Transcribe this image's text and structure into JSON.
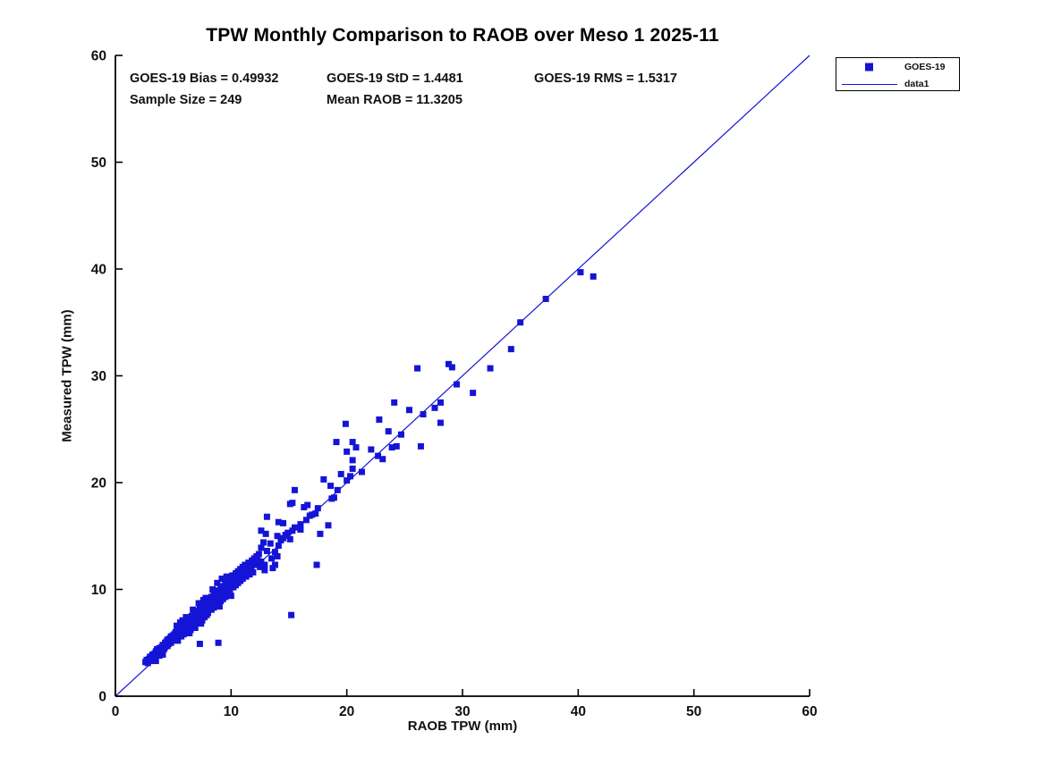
{
  "title": "TPW Monthly Comparison to RAOB over Meso 1 2025-11",
  "stats": {
    "bias": "GOES-19 Bias = 0.49932",
    "std": "GOES-19 StD = 1.4481",
    "rms": "GOES-19 RMS = 1.5317",
    "sample_size": "Sample Size = 249",
    "mean_raob": "Mean RAOB = 11.3205"
  },
  "legend": {
    "marker_label": "GOES-19",
    "line_label": "data1"
  },
  "colors": {
    "accent_blue": "#1414d6",
    "axis_black": "#000000",
    "background": "#ffffff"
  },
  "chart_data": {
    "type": "scatter",
    "title": "TPW Monthly Comparison to RAOB over Meso 1 2025-11",
    "xlabel": "RAOB TPW (mm)",
    "ylabel": "Measured TPW (mm)",
    "xlim": [
      0,
      60
    ],
    "ylim": [
      0,
      60
    ],
    "x_ticks": [
      0,
      10,
      20,
      30,
      40,
      50,
      60
    ],
    "y_ticks": [
      0,
      10,
      20,
      30,
      40,
      50,
      60
    ],
    "grid": false,
    "legend_position": "outside-top-right",
    "reference_line": {
      "name": "data1",
      "from": [
        0,
        0
      ],
      "to": [
        60,
        60
      ],
      "color": "#1414d6"
    },
    "series": [
      {
        "name": "GOES-19",
        "marker": "square",
        "color": "#1414d6",
        "points": [
          [
            2.6,
            3.2
          ],
          [
            2.7,
            3.4
          ],
          [
            2.8,
            3.1
          ],
          [
            2.9,
            3.5
          ],
          [
            3.0,
            3.3
          ],
          [
            3.0,
            3.7
          ],
          [
            3.1,
            3.5
          ],
          [
            3.2,
            3.9
          ],
          [
            3.2,
            3.4
          ],
          [
            3.3,
            3.7
          ],
          [
            3.4,
            4.0
          ],
          [
            3.4,
            3.6
          ],
          [
            3.5,
            4.2
          ],
          [
            3.6,
            3.9
          ],
          [
            3.6,
            4.4
          ],
          [
            3.7,
            4.1
          ],
          [
            3.8,
            4.5
          ],
          [
            3.8,
            3.8
          ],
          [
            3.9,
            4.2
          ],
          [
            4.0,
            4.6
          ],
          [
            4.0,
            4.3
          ],
          [
            4.1,
            4.8
          ],
          [
            4.2,
            4.4
          ],
          [
            4.3,
            5.0
          ],
          [
            4.3,
            4.6
          ],
          [
            4.4,
            5.1
          ],
          [
            4.5,
            4.7
          ],
          [
            4.5,
            5.3
          ],
          [
            4.6,
            4.9
          ],
          [
            4.7,
            5.4
          ],
          [
            4.8,
            5.0
          ],
          [
            4.8,
            5.6
          ],
          [
            4.9,
            5.2
          ],
          [
            5.0,
            5.7
          ],
          [
            3.5,
            3.3
          ],
          [
            4.1,
            3.9
          ],
          [
            5.0,
            5.3
          ],
          [
            5.1,
            5.8
          ],
          [
            5.2,
            5.5
          ],
          [
            5.2,
            6.0
          ],
          [
            5.3,
            5.7
          ],
          [
            5.4,
            6.1
          ],
          [
            5.4,
            5.2
          ],
          [
            5.5,
            5.9
          ],
          [
            5.5,
            6.3
          ],
          [
            5.6,
            6.0
          ],
          [
            5.7,
            6.4
          ],
          [
            5.7,
            5.6
          ],
          [
            5.8,
            6.2
          ],
          [
            5.9,
            6.6
          ],
          [
            5.9,
            5.8
          ],
          [
            6.0,
            6.4
          ],
          [
            6.0,
            6.9
          ],
          [
            6.1,
            6.5
          ],
          [
            6.2,
            7.0
          ],
          [
            6.2,
            6.0
          ],
          [
            6.3,
            6.7
          ],
          [
            6.3,
            7.2
          ],
          [
            6.4,
            6.8
          ],
          [
            6.5,
            7.3
          ],
          [
            6.5,
            6.2
          ],
          [
            5.3,
            6.6
          ],
          [
            5.6,
            6.9
          ],
          [
            6.1,
            7.4
          ],
          [
            5.8,
            7.1
          ],
          [
            6.4,
            5.9
          ],
          [
            6.6,
            7.0
          ],
          [
            6.6,
            7.5
          ],
          [
            6.7,
            7.2
          ],
          [
            6.8,
            7.7
          ],
          [
            6.8,
            6.6
          ],
          [
            6.9,
            7.3
          ],
          [
            7.0,
            7.8
          ],
          [
            7.0,
            6.9
          ],
          [
            7.1,
            7.5
          ],
          [
            7.1,
            8.0
          ],
          [
            7.2,
            7.2
          ],
          [
            7.3,
            7.7
          ],
          [
            7.3,
            8.2
          ],
          [
            7.4,
            7.9
          ],
          [
            7.5,
            8.4
          ],
          [
            7.5,
            7.1
          ],
          [
            7.6,
            8.0
          ],
          [
            7.7,
            8.6
          ],
          [
            7.7,
            7.4
          ],
          [
            7.8,
            8.2
          ],
          [
            7.9,
            8.8
          ],
          [
            7.9,
            7.6
          ],
          [
            8.0,
            8.4
          ],
          [
            6.7,
            8.1
          ],
          [
            7.2,
            8.7
          ],
          [
            7.6,
            9.0
          ],
          [
            6.9,
            6.4
          ],
          [
            7.4,
            6.8
          ],
          [
            7.8,
            9.2
          ],
          [
            8.0,
            7.8
          ],
          [
            8.1,
            8.6
          ],
          [
            8.1,
            9.1
          ],
          [
            8.2,
            8.8
          ],
          [
            8.3,
            9.3
          ],
          [
            8.3,
            8.1
          ],
          [
            8.4,
            9.0
          ],
          [
            8.5,
            9.5
          ],
          [
            8.5,
            8.3
          ],
          [
            8.6,
            9.1
          ],
          [
            8.7,
            9.7
          ],
          [
            8.7,
            8.5
          ],
          [
            8.8,
            9.3
          ],
          [
            8.9,
            9.9
          ],
          [
            8.9,
            8.7
          ],
          [
            9.0,
            9.5
          ],
          [
            9.1,
            10.1
          ],
          [
            9.1,
            8.9
          ],
          [
            9.2,
            9.7
          ],
          [
            9.3,
            10.3
          ],
          [
            9.3,
            9.1
          ],
          [
            9.4,
            9.9
          ],
          [
            9.5,
            10.5
          ],
          [
            9.5,
            9.3
          ],
          [
            9.6,
            10.1
          ],
          [
            9.7,
            10.7
          ],
          [
            9.7,
            9.5
          ],
          [
            9.8,
            10.3
          ],
          [
            9.9,
            10.9
          ],
          [
            9.9,
            9.7
          ],
          [
            10.0,
            10.5
          ],
          [
            8.4,
            10.0
          ],
          [
            8.8,
            10.6
          ],
          [
            9.2,
            11.0
          ],
          [
            9.6,
            11.2
          ],
          [
            10.0,
            9.4
          ],
          [
            10.1,
            10.7
          ],
          [
            10.1,
            11.3
          ],
          [
            10.2,
            10.2
          ],
          [
            10.3,
            10.9
          ],
          [
            10.4,
            11.5
          ],
          [
            10.4,
            10.4
          ],
          [
            10.5,
            11.1
          ],
          [
            10.6,
            11.7
          ],
          [
            10.6,
            10.6
          ],
          [
            10.7,
            11.3
          ],
          [
            10.8,
            11.9
          ],
          [
            10.8,
            10.8
          ],
          [
            10.9,
            11.5
          ],
          [
            11.0,
            12.1
          ],
          [
            11.0,
            11.0
          ],
          [
            11.1,
            11.7
          ],
          [
            11.2,
            12.3
          ],
          [
            11.3,
            11.2
          ],
          [
            11.4,
            11.9
          ],
          [
            11.5,
            12.5
          ],
          [
            11.6,
            11.4
          ],
          [
            11.7,
            12.1
          ],
          [
            11.8,
            12.7
          ],
          [
            11.9,
            11.6
          ],
          [
            12.0,
            12.3
          ],
          [
            12.0,
            12.9
          ],
          [
            12.1,
            12.5
          ],
          [
            12.2,
            13.1
          ],
          [
            12.3,
            12.7
          ],
          [
            12.4,
            13.3
          ],
          [
            12.5,
            12.1
          ],
          [
            12.6,
            12.6
          ],
          [
            12.6,
            15.5
          ],
          [
            12.6,
            13.9
          ],
          [
            12.8,
            14.4
          ],
          [
            12.9,
            12.3
          ],
          [
            12.9,
            11.8
          ],
          [
            13.0,
            15.2
          ],
          [
            13.1,
            16.8
          ],
          [
            13.1,
            13.6
          ],
          [
            13.4,
            14.3
          ],
          [
            13.5,
            12.9
          ],
          [
            13.6,
            12.0
          ],
          [
            13.8,
            13.5
          ],
          [
            13.8,
            12.3
          ],
          [
            14.0,
            15.0
          ],
          [
            14.0,
            13.1
          ],
          [
            14.1,
            16.3
          ],
          [
            14.1,
            14.1
          ],
          [
            14.3,
            14.6
          ],
          [
            14.5,
            14.8
          ],
          [
            14.5,
            16.2
          ],
          [
            14.7,
            15.1
          ],
          [
            14.9,
            15.3
          ],
          [
            15.1,
            14.7
          ],
          [
            15.1,
            18.0
          ],
          [
            15.2,
            7.6
          ],
          [
            15.3,
            18.1
          ],
          [
            15.3,
            15.5
          ],
          [
            15.5,
            15.8
          ],
          [
            15.5,
            19.3
          ],
          [
            16.0,
            15.6
          ],
          [
            16.0,
            16.1
          ],
          [
            16.3,
            17.7
          ],
          [
            16.5,
            16.5
          ],
          [
            16.6,
            17.9
          ],
          [
            16.8,
            16.9
          ],
          [
            17.0,
            17.0
          ],
          [
            17.3,
            17.1
          ],
          [
            17.4,
            12.3
          ],
          [
            17.5,
            17.6
          ],
          [
            17.7,
            15.2
          ],
          [
            18.0,
            20.3
          ],
          [
            18.4,
            16.0
          ],
          [
            18.6,
            19.7
          ],
          [
            18.7,
            18.5
          ],
          [
            18.9,
            18.6
          ],
          [
            19.1,
            23.8
          ],
          [
            19.2,
            19.3
          ],
          [
            19.5,
            20.8
          ],
          [
            19.9,
            25.5
          ],
          [
            20.0,
            20.2
          ],
          [
            20.0,
            22.9
          ],
          [
            20.3,
            20.6
          ],
          [
            20.5,
            23.8
          ],
          [
            20.5,
            22.1
          ],
          [
            20.5,
            21.3
          ],
          [
            20.8,
            23.3
          ],
          [
            21.3,
            21.0
          ],
          [
            22.1,
            23.1
          ],
          [
            22.7,
            22.5
          ],
          [
            22.8,
            25.9
          ],
          [
            23.1,
            22.2
          ],
          [
            23.6,
            24.8
          ],
          [
            23.9,
            23.3
          ],
          [
            24.1,
            27.5
          ],
          [
            24.3,
            23.4
          ],
          [
            24.7,
            24.5
          ],
          [
            25.4,
            26.8
          ],
          [
            26.1,
            30.7
          ],
          [
            26.4,
            23.4
          ],
          [
            26.6,
            26.4
          ],
          [
            27.6,
            27.0
          ],
          [
            28.1,
            27.5
          ],
          [
            28.1,
            25.6
          ],
          [
            28.8,
            31.1
          ],
          [
            29.1,
            30.8
          ],
          [
            29.5,
            29.2
          ],
          [
            30.9,
            28.4
          ],
          [
            32.4,
            30.7
          ],
          [
            34.2,
            32.5
          ],
          [
            35.0,
            35.0
          ],
          [
            37.2,
            37.2
          ],
          [
            40.2,
            39.7
          ],
          [
            41.3,
            39.3
          ],
          [
            7.3,
            4.9
          ],
          [
            8.9,
            5.0
          ],
          [
            9.0,
            8.4
          ]
        ]
      }
    ]
  }
}
